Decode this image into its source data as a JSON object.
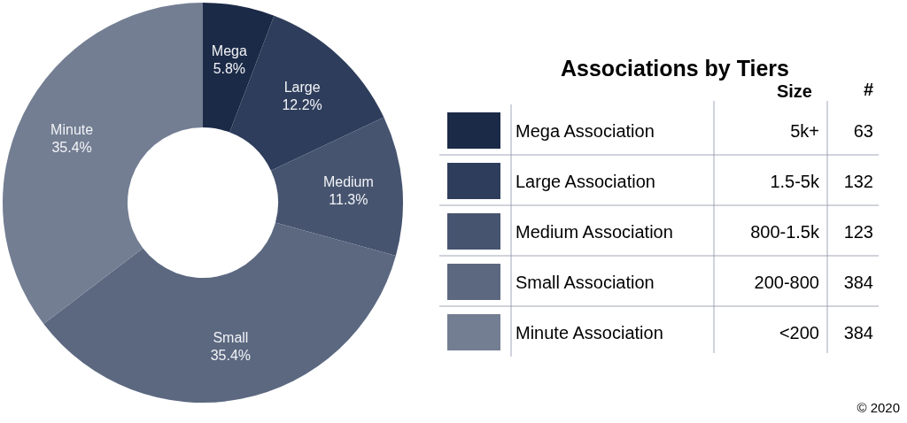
{
  "chart_data": [
    {
      "type": "donut",
      "title": "Associations by Tiers",
      "categories": [
        "Mega",
        "Large",
        "Medium",
        "Small",
        "Minute"
      ],
      "values": [
        5.8,
        12.2,
        11.3,
        35.4,
        35.4
      ],
      "colors": [
        "#1b2a47",
        "#2e3d5b",
        "#46546f",
        "#5b6880",
        "#737e93"
      ],
      "value_labels": [
        "5.8%",
        "12.2%",
        "11.3%",
        "35.4%",
        "35.4%"
      ]
    },
    {
      "type": "other",
      "categories": [
        "Mega Association",
        "Large Association",
        "Medium Association",
        "Small Association",
        "Minute Association"
      ],
      "colors": [
        "#1b2a47",
        "#2e3d5b",
        "#46546f",
        "#5b6880",
        "#737e93"
      ],
      "series": [
        {
          "name": "#",
          "values": [
            63,
            132,
            123,
            384,
            384
          ]
        }
      ],
      "data_labels": true,
      "annotations": [
        "Size",
        {
          "text": "5k+",
          "y": "Mega Association"
        },
        {
          "text": "1.5-5k",
          "y": "Large Association"
        },
        {
          "text": "800-1.5k",
          "y": "Medium Association"
        },
        {
          "text": "200-800",
          "y": "Small Association"
        },
        {
          "text": "<200",
          "y": "Minute Association"
        },
        "© 2020"
      ]
    }
  ]
}
